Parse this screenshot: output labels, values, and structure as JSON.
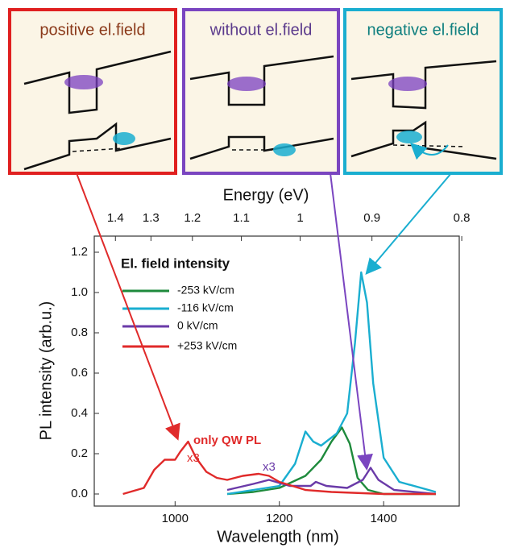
{
  "insets": [
    {
      "title": "positive el.field"
    },
    {
      "title": "without el.field"
    },
    {
      "title": "negative el.field"
    }
  ],
  "chart_data": {
    "type": "line",
    "xlabel": "Wavelength (nm)",
    "ylabel": "PL intensity (arb.u.)",
    "x2label": "Energy (eV)",
    "legend_title": "El. field intensity",
    "xlim": [
      845,
      1545
    ],
    "xticks": [
      1000,
      1200,
      1400
    ],
    "ylim": [
      -0.06,
      1.28
    ],
    "yticks": [
      {
        "value": 0,
        "label": "0.0"
      },
      0.2,
      0.4,
      0.6,
      0.8,
      {
        "value": 1,
        "label": "1.0"
      },
      1.2
    ],
    "x2ticks": [
      1.4,
      1.3,
      1.2,
      1.1,
      1,
      0.9,
      0.8
    ],
    "series": [
      {
        "name": "-253 kV/cm",
        "color": "#1e8a3c",
        "x": [
          1100,
          1150,
          1200,
          1250,
          1280,
          1300,
          1320,
          1335,
          1350,
          1370,
          1400,
          1500
        ],
        "values": [
          0.0,
          0.01,
          0.03,
          0.09,
          0.17,
          0.26,
          0.33,
          0.25,
          0.08,
          0.02,
          0.0,
          0.0
        ]
      },
      {
        "name": "-116 kV/cm",
        "color": "#1aaed0",
        "x": [
          1100,
          1200,
          1230,
          1250,
          1265,
          1280,
          1310,
          1330,
          1345,
          1357,
          1368,
          1380,
          1400,
          1430,
          1500
        ],
        "values": [
          0.0,
          0.04,
          0.15,
          0.31,
          0.26,
          0.24,
          0.3,
          0.4,
          0.75,
          1.1,
          0.95,
          0.55,
          0.18,
          0.06,
          0.01
        ]
      },
      {
        "name": "0 kV/cm",
        "color": "#6a3aa8",
        "x": [
          1100,
          1150,
          1180,
          1220,
          1260,
          1270,
          1290,
          1330,
          1360,
          1375,
          1390,
          1420,
          1500
        ],
        "values": [
          0.02,
          0.05,
          0.07,
          0.04,
          0.04,
          0.06,
          0.04,
          0.03,
          0.07,
          0.13,
          0.07,
          0.02,
          0.0
        ]
      },
      {
        "name": "+253 kV/cm",
        "color": "#e02a2a",
        "x": [
          900,
          940,
          960,
          980,
          1000,
          1010,
          1025,
          1040,
          1060,
          1080,
          1100,
          1130,
          1160,
          1180,
          1200,
          1250,
          1300,
          1400,
          1500
        ],
        "values": [
          0.0,
          0.03,
          0.12,
          0.17,
          0.17,
          0.21,
          0.26,
          0.18,
          0.11,
          0.08,
          0.07,
          0.09,
          0.1,
          0.09,
          0.06,
          0.02,
          0.01,
          0.0,
          0.0
        ]
      }
    ],
    "annotations": [
      "only QW PL",
      "x3",
      "x3"
    ]
  }
}
